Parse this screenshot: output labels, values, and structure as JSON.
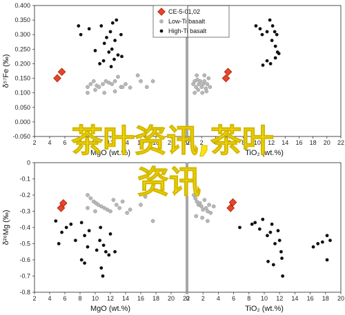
{
  "overlay_text": {
    "line1": "茶叶资讯,茶叶",
    "line2": "资讯"
  },
  "colors": {
    "ce": "#e8452a",
    "ce_stroke": "#b22a10",
    "low": "#b8b8b8",
    "high": "#111111",
    "overlay": "#ffe600"
  },
  "chart_data": [
    {
      "type": "scatter",
      "id": "tl",
      "xlabel": "MgO (wt.%)",
      "ylabel": "δ⁵⁷Fe (‰)",
      "xlim": [
        2,
        22
      ],
      "ylim": [
        -0.05,
        0.4
      ],
      "xticks": [
        2,
        4,
        6,
        8,
        10,
        12,
        14,
        16,
        18,
        20,
        22
      ],
      "yticks": [
        0.4,
        0.35,
        0.3,
        0.25,
        0.2,
        0.15,
        0.1,
        0.05,
        0.0,
        -0.05
      ],
      "ytick_labels": [
        "0.400",
        "0.350",
        "0.300",
        "0.250",
        "0.200",
        "0.150",
        "0.100",
        "0.050",
        "0.000",
        "-0.050"
      ],
      "legend": {
        "position": "top-right",
        "items": [
          {
            "label": "CE-5-01,02",
            "marker": "ce"
          },
          {
            "label": "Low-Ti basalt",
            "marker": "low"
          },
          {
            "label": "High-Ti basalt",
            "marker": "high"
          }
        ]
      },
      "series": [
        {
          "name": "CE-5-01,02",
          "marker": "ce",
          "points": [
            [
              5.0,
              0.15
            ],
            [
              5.6,
              0.172
            ]
          ]
        },
        {
          "name": "Low-Ti basalt",
          "marker": "low",
          "points": [
            [
              9.0,
              0.12
            ],
            [
              9.4,
              0.13
            ],
            [
              9.8,
              0.14
            ],
            [
              10.2,
              0.125
            ],
            [
              10.5,
              0.12
            ],
            [
              11.0,
              0.13
            ],
            [
              11.4,
              0.14
            ],
            [
              11.8,
              0.135
            ],
            [
              12.2,
              0.13
            ],
            [
              12.6,
              0.14
            ],
            [
              13.0,
              0.155
            ],
            [
              13.4,
              0.12
            ],
            [
              14.0,
              0.13
            ],
            [
              14.6,
              0.118
            ],
            [
              15.6,
              0.16
            ],
            [
              16.0,
              0.14
            ],
            [
              16.8,
              0.12
            ],
            [
              17.6,
              0.14
            ],
            [
              9.0,
              0.1
            ],
            [
              10.0,
              0.11
            ],
            [
              11.2,
              0.1
            ],
            [
              12.6,
              0.105
            ],
            [
              13.6,
              0.12
            ]
          ]
        },
        {
          "name": "High-Ti basalt",
          "marker": "high",
          "points": [
            [
              7.8,
              0.33
            ],
            [
              8.1,
              0.3
            ],
            [
              9.2,
              0.32
            ],
            [
              10.8,
              0.33
            ],
            [
              11.2,
              0.27
            ],
            [
              11.5,
              0.29
            ],
            [
              11.8,
              0.24
            ],
            [
              12.0,
              0.31
            ],
            [
              12.3,
              0.34
            ],
            [
              12.8,
              0.35
            ],
            [
              12.2,
              0.25
            ],
            [
              12.6,
              0.28
            ],
            [
              13.0,
              0.23
            ],
            [
              13.4,
              0.3
            ],
            [
              10.6,
              0.2
            ],
            [
              11.1,
              0.21
            ],
            [
              12.1,
              0.19
            ],
            [
              12.5,
              0.215
            ],
            [
              13.5,
              0.225
            ],
            [
              10.0,
              0.245
            ]
          ]
        }
      ]
    },
    {
      "type": "scatter",
      "id": "tr",
      "xlabel": "TiO₂ (wt.%)",
      "ylabel": "",
      "xlim": [
        0,
        22
      ],
      "ylim": [
        -0.05,
        0.4
      ],
      "xticks": [
        0,
        2,
        4,
        6,
        8,
        10,
        12,
        14,
        16,
        18,
        20,
        22
      ],
      "yticks": [],
      "ytick_labels": [],
      "series": [
        {
          "name": "CE-5-01,02",
          "marker": "ce",
          "points": [
            [
              5.5,
              0.15
            ],
            [
              5.8,
              0.172
            ]
          ]
        },
        {
          "name": "Low-Ti basalt",
          "marker": "low",
          "points": [
            [
              0.8,
              0.13
            ],
            [
              1.0,
              0.14
            ],
            [
              1.2,
              0.12
            ],
            [
              1.4,
              0.145
            ],
            [
              1.6,
              0.13
            ],
            [
              1.8,
              0.14
            ],
            [
              2.0,
              0.12
            ],
            [
              2.2,
              0.13
            ],
            [
              2.4,
              0.14
            ],
            [
              2.6,
              0.115
            ],
            [
              2.8,
              0.13
            ],
            [
              3.0,
              0.15
            ],
            [
              1.0,
              0.1
            ],
            [
              1.5,
              0.11
            ],
            [
              2.1,
              0.1
            ],
            [
              2.7,
              0.105
            ],
            [
              3.2,
              0.12
            ],
            [
              1.3,
              0.16
            ],
            [
              2.4,
              0.16
            ]
          ]
        },
        {
          "name": "High-Ti basalt",
          "marker": "high",
          "points": [
            [
              9.8,
              0.33
            ],
            [
              10.4,
              0.32
            ],
            [
              10.7,
              0.3
            ],
            [
              11.4,
              0.31
            ],
            [
              11.8,
              0.35
            ],
            [
              12.2,
              0.33
            ],
            [
              12.5,
              0.31
            ],
            [
              12.8,
              0.3
            ],
            [
              12.1,
              0.28
            ],
            [
              12.6,
              0.26
            ],
            [
              12.9,
              0.24
            ],
            [
              13.1,
              0.235
            ],
            [
              12.6,
              0.22
            ],
            [
              11.9,
              0.2
            ],
            [
              11.4,
              0.21
            ],
            [
              10.8,
              0.195
            ]
          ]
        }
      ]
    },
    {
      "type": "scatter",
      "id": "bl",
      "xlabel": "MgO (wt.%)",
      "ylabel": "δ²⁶Mg (‰)",
      "xlim": [
        2,
        22
      ],
      "ylim": [
        -0.8,
        0.0
      ],
      "xticks": [
        2,
        4,
        6,
        8,
        10,
        12,
        14,
        16,
        18,
        20,
        22
      ],
      "yticks": [
        0.0,
        -0.1,
        -0.2,
        -0.3,
        -0.4,
        -0.5,
        -0.6,
        -0.7,
        -0.8
      ],
      "ytick_labels": [
        "0",
        "-0.1",
        "-0.2",
        "-0.3",
        "-0.4",
        "-0.5",
        "-0.6",
        "-0.7",
        "-0.8"
      ],
      "series": [
        {
          "name": "CE-5-01,02",
          "marker": "ce",
          "points": [
            [
              5.5,
              -0.28
            ],
            [
              5.8,
              -0.25
            ]
          ]
        },
        {
          "name": "Low-Ti basalt",
          "marker": "low",
          "points": [
            [
              9.0,
              -0.2
            ],
            [
              9.4,
              -0.22
            ],
            [
              9.8,
              -0.24
            ],
            [
              10.1,
              -0.25
            ],
            [
              10.4,
              -0.26
            ],
            [
              10.8,
              -0.27
            ],
            [
              11.2,
              -0.28
            ],
            [
              11.6,
              -0.29
            ],
            [
              12.0,
              -0.3
            ],
            [
              12.4,
              -0.23
            ],
            [
              12.8,
              -0.26
            ],
            [
              13.2,
              -0.28
            ],
            [
              13.6,
              -0.24
            ],
            [
              14.2,
              -0.31
            ],
            [
              14.6,
              -0.29
            ],
            [
              16.0,
              -0.26
            ],
            [
              16.6,
              -0.21
            ],
            [
              17.6,
              -0.36
            ],
            [
              9.0,
              -0.28
            ],
            [
              10.0,
              -0.3
            ]
          ]
        },
        {
          "name": "High-Ti basalt",
          "marker": "high",
          "points": [
            [
              4.8,
              -0.36
            ],
            [
              5.6,
              -0.43
            ],
            [
              5.2,
              -0.5
            ],
            [
              6.2,
              -0.4
            ],
            [
              6.8,
              -0.38
            ],
            [
              7.4,
              -0.48
            ],
            [
              8.2,
              -0.37
            ],
            [
              8.6,
              -0.45
            ],
            [
              9.0,
              -0.52
            ],
            [
              9.2,
              -0.42
            ],
            [
              10.2,
              -0.54
            ],
            [
              10.6,
              -0.48
            ],
            [
              10.7,
              -0.4
            ],
            [
              11.1,
              -0.51
            ],
            [
              11.4,
              -0.55
            ],
            [
              11.8,
              -0.57
            ],
            [
              12.0,
              -0.44
            ],
            [
              12.6,
              -0.55
            ],
            [
              8.2,
              -0.6
            ],
            [
              8.6,
              -0.62
            ],
            [
              10.8,
              -0.65
            ],
            [
              11.0,
              -0.7
            ]
          ]
        }
      ]
    },
    {
      "type": "scatter",
      "id": "br",
      "xlabel": "TiO₂ (wt.%)",
      "ylabel": "",
      "xlim": [
        0,
        20
      ],
      "ylim": [
        -0.8,
        0.0
      ],
      "xticks": [
        0,
        2,
        4,
        6,
        8,
        10,
        12,
        14,
        16,
        18,
        20
      ],
      "yticks": [],
      "ytick_labels": [],
      "series": [
        {
          "name": "CE-5-01,02",
          "marker": "ce",
          "points": [
            [
              5.6,
              -0.28
            ],
            [
              5.9,
              -0.245
            ]
          ]
        },
        {
          "name": "Low-Ti basalt",
          "marker": "low",
          "points": [
            [
              0.8,
              -0.2
            ],
            [
              1.0,
              -0.22
            ],
            [
              1.2,
              -0.24
            ],
            [
              1.4,
              -0.26
            ],
            [
              1.6,
              -0.25
            ],
            [
              1.8,
              -0.27
            ],
            [
              2.0,
              -0.29
            ],
            [
              2.2,
              -0.23
            ],
            [
              2.4,
              -0.28
            ],
            [
              2.6,
              -0.3
            ],
            [
              2.8,
              -0.26
            ],
            [
              3.0,
              -0.31
            ],
            [
              1.1,
              -0.33
            ],
            [
              1.9,
              -0.34
            ],
            [
              2.6,
              -0.36
            ],
            [
              3.4,
              -0.27
            ]
          ]
        },
        {
          "name": "High-Ti basalt",
          "marker": "high",
          "points": [
            [
              6.8,
              -0.4
            ],
            [
              8.4,
              -0.38
            ],
            [
              8.8,
              -0.37
            ],
            [
              9.4,
              -0.41
            ],
            [
              9.8,
              -0.35
            ],
            [
              10.4,
              -0.45
            ],
            [
              10.8,
              -0.43
            ],
            [
              11.0,
              -0.38
            ],
            [
              11.4,
              -0.5
            ],
            [
              11.8,
              -0.42
            ],
            [
              12.0,
              -0.48
            ],
            [
              12.2,
              -0.55
            ],
            [
              12.3,
              -0.59
            ],
            [
              10.5,
              -0.61
            ],
            [
              11.2,
              -0.63
            ],
            [
              16.4,
              -0.52
            ],
            [
              17.0,
              -0.5
            ],
            [
              17.6,
              -0.49
            ],
            [
              18.2,
              -0.45
            ],
            [
              18.6,
              -0.48
            ],
            [
              18.2,
              -0.6
            ],
            [
              12.4,
              -0.7
            ]
          ]
        }
      ]
    }
  ]
}
